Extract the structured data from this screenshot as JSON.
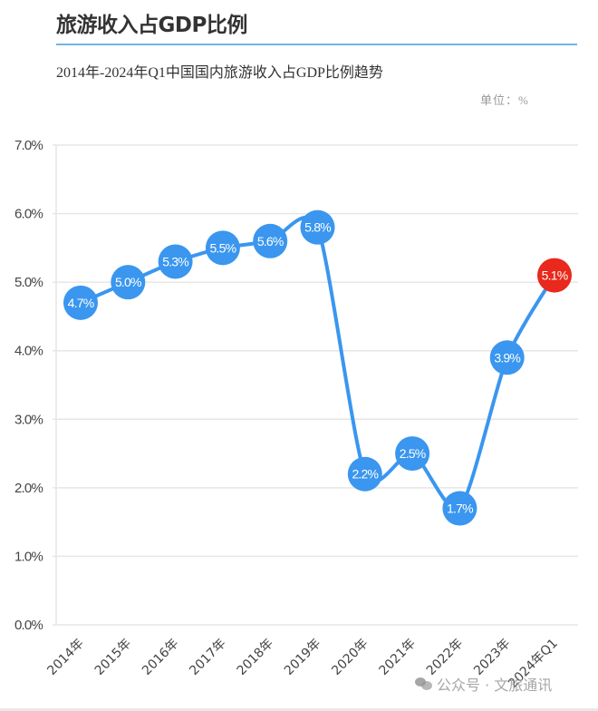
{
  "header": {
    "title": "旅游收入占GDP比例",
    "subtitle": "2014年-2024年Q1中国国内旅游收入占GDP比例趋势",
    "unit": "单位：%"
  },
  "watermark": {
    "text": "公众号 · 文旅通讯",
    "icon": "wechat-icon"
  },
  "colors": {
    "line": "#3a96ef",
    "point": "#3a96ef",
    "highlight_point": "#e8291c",
    "grid": "#e6e6e6",
    "divider": "#6fb6e8"
  },
  "chart_data": {
    "type": "line",
    "title": "旅游收入占GDP比例",
    "subtitle": "2014年-2024年Q1中国国内旅游收入占GDP比例趋势",
    "xlabel": "",
    "ylabel": "单位：%",
    "categories": [
      "2014年",
      "2015年",
      "2016年",
      "2017年",
      "2018年",
      "2019年",
      "2020年",
      "2021年",
      "2022年",
      "2023年",
      "2024年Q1"
    ],
    "series": [
      {
        "name": "国内旅游收入占GDP比例",
        "values": [
          4.7,
          5.0,
          5.3,
          5.5,
          5.6,
          5.8,
          2.2,
          2.5,
          1.7,
          3.9,
          5.1
        ],
        "labels": [
          "4.7%",
          "5.0%",
          "5.3%",
          "5.5%",
          "5.6%",
          "5.8%",
          "2.2%",
          "2.5%",
          "1.7%",
          "3.9%",
          "5.1%"
        ],
        "highlight_index": 10
      }
    ],
    "ylim": [
      0,
      7
    ],
    "yticks": [
      "0.0%",
      "1.0%",
      "2.0%",
      "3.0%",
      "4.0%",
      "5.0%",
      "6.0%",
      "7.0%"
    ],
    "grid": true,
    "legend": "none"
  }
}
